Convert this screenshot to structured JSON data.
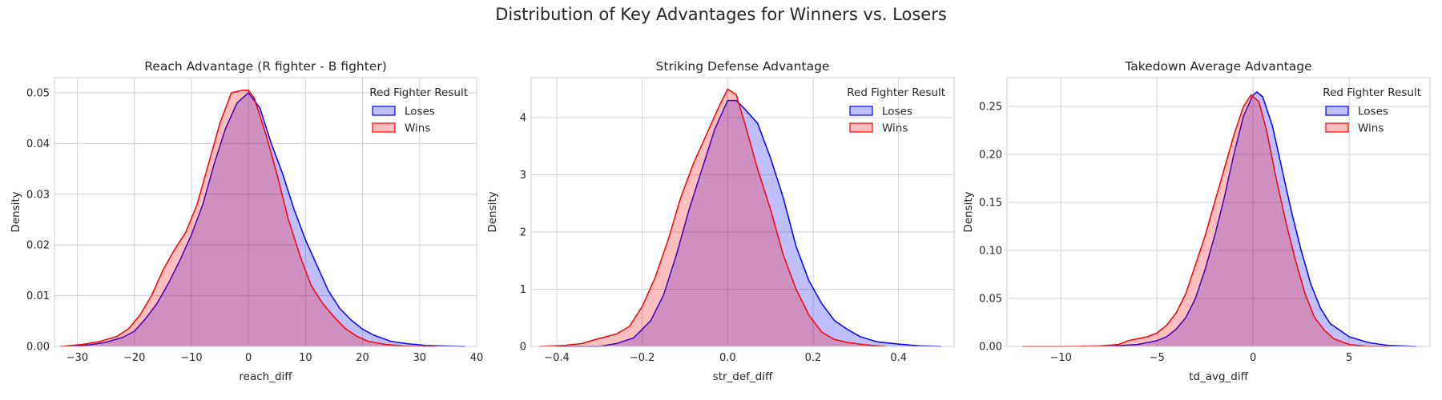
{
  "suptitle": "Distribution of Key Advantages for Winners vs. Losers",
  "colors": {
    "loses": "#0000ff",
    "wins": "#ff0000",
    "grid": "#d0d0d0",
    "frame": "#cccccc"
  },
  "chart_data": [
    {
      "type": "area",
      "title": "Reach Advantage (R fighter - B fighter)",
      "xlabel": "reach_diff",
      "ylabel": "Density",
      "xlim": [
        -34,
        40
      ],
      "ylim": [
        0,
        0.053
      ],
      "xticks": [
        -30,
        -20,
        -10,
        0,
        10,
        20,
        30,
        40
      ],
      "xtick_labels": [
        "−30",
        "−20",
        "−10",
        "0",
        "10",
        "20",
        "30",
        "40"
      ],
      "yticks": [
        0,
        0.01,
        0.02,
        0.03,
        0.04,
        0.05
      ],
      "ytick_labels": [
        "0.00",
        "0.01",
        "0.02",
        "0.03",
        "0.04",
        "0.05"
      ],
      "grid": true,
      "legend": {
        "title": "Red Fighter Result",
        "placement": "top-right"
      },
      "series": [
        {
          "name": "Loses",
          "color": "#0000ff",
          "x": [
            -32,
            -28,
            -25,
            -22,
            -20,
            -18,
            -16,
            -14,
            -12,
            -10,
            -8,
            -6,
            -4,
            -2,
            0,
            2,
            4,
            6,
            8,
            10,
            12,
            14,
            16,
            18,
            20,
            22,
            25,
            28,
            31,
            34,
            38
          ],
          "y": [
            0.0,
            0.0003,
            0.0008,
            0.0018,
            0.003,
            0.0055,
            0.0085,
            0.0125,
            0.017,
            0.022,
            0.028,
            0.036,
            0.043,
            0.048,
            0.05,
            0.047,
            0.04,
            0.034,
            0.027,
            0.021,
            0.016,
            0.011,
            0.0075,
            0.0052,
            0.0034,
            0.0022,
            0.001,
            0.0005,
            0.0002,
            0.0001,
            0.0
          ]
        },
        {
          "name": "Wins",
          "color": "#ff0000",
          "x": [
            -33,
            -29,
            -26,
            -23,
            -21,
            -19,
            -17,
            -15,
            -13,
            -11,
            -9,
            -7,
            -5,
            -3,
            -1,
            0,
            1,
            3,
            5,
            7,
            9,
            11,
            13,
            15,
            17,
            19,
            21,
            24,
            27,
            30,
            33
          ],
          "y": [
            0.0,
            0.0004,
            0.001,
            0.002,
            0.0035,
            0.0062,
            0.01,
            0.015,
            0.019,
            0.0225,
            0.028,
            0.036,
            0.044,
            0.05,
            0.0505,
            0.0505,
            0.049,
            0.042,
            0.034,
            0.025,
            0.018,
            0.012,
            0.0085,
            0.0058,
            0.0035,
            0.002,
            0.001,
            0.0004,
            0.0001,
            0.0,
            0.0
          ]
        }
      ]
    },
    {
      "type": "area",
      "title": "Striking Defense Advantage",
      "xlabel": "str_def_diff",
      "ylabel": "Density",
      "xlim": [
        -0.46,
        0.53
      ],
      "ylim": [
        0,
        4.7
      ],
      "xticks": [
        -0.4,
        -0.2,
        0,
        0.2,
        0.4
      ],
      "xtick_labels": [
        "−0.4",
        "−0.2",
        "0.0",
        "0.2",
        "0.4"
      ],
      "yticks": [
        0,
        1,
        2,
        3,
        4
      ],
      "ytick_labels": [
        "0",
        "1",
        "2",
        "3",
        "4"
      ],
      "grid": true,
      "legend": {
        "title": "Red Fighter Result",
        "placement": "top-right"
      },
      "series": [
        {
          "name": "Loses",
          "color": "#0000ff",
          "x": [
            -0.4,
            -0.34,
            -0.3,
            -0.26,
            -0.22,
            -0.18,
            -0.15,
            -0.12,
            -0.09,
            -0.06,
            -0.03,
            0.0,
            0.02,
            0.04,
            0.07,
            0.1,
            0.13,
            0.16,
            0.19,
            0.22,
            0.25,
            0.28,
            0.31,
            0.35,
            0.4,
            0.45,
            0.5
          ],
          "y": [
            0.0,
            0.0,
            0.0,
            0.05,
            0.15,
            0.45,
            0.9,
            1.6,
            2.4,
            3.1,
            3.8,
            4.3,
            4.3,
            4.15,
            3.9,
            3.3,
            2.6,
            1.75,
            1.15,
            0.75,
            0.45,
            0.3,
            0.17,
            0.08,
            0.04,
            0.01,
            0.0
          ]
        },
        {
          "name": "Wins",
          "color": "#ff0000",
          "x": [
            -0.44,
            -0.38,
            -0.34,
            -0.31,
            -0.29,
            -0.26,
            -0.23,
            -0.2,
            -0.17,
            -0.14,
            -0.11,
            -0.08,
            -0.05,
            -0.02,
            0.0,
            0.02,
            0.04,
            0.07,
            0.1,
            0.13,
            0.16,
            0.19,
            0.22,
            0.25,
            0.28,
            0.32,
            0.37
          ],
          "y": [
            0.0,
            0.02,
            0.05,
            0.12,
            0.16,
            0.22,
            0.35,
            0.7,
            1.2,
            1.85,
            2.6,
            3.2,
            3.7,
            4.2,
            4.5,
            4.4,
            3.9,
            3.1,
            2.4,
            1.6,
            1.0,
            0.55,
            0.25,
            0.12,
            0.07,
            0.03,
            0.0
          ]
        }
      ]
    },
    {
      "type": "area",
      "title": "Takedown Average Advantage",
      "xlabel": "td_avg_diff",
      "ylabel": "Density",
      "xlim": [
        -12.8,
        9.2
      ],
      "ylim": [
        0,
        0.28
      ],
      "xticks": [
        -10,
        -5,
        0,
        5
      ],
      "xtick_labels": [
        "−10",
        "−5",
        "0",
        "5"
      ],
      "yticks": [
        0,
        0.05,
        0.1,
        0.15,
        0.2,
        0.25
      ],
      "ytick_labels": [
        "0.00",
        "0.05",
        "0.10",
        "0.15",
        "0.20",
        "0.25"
      ],
      "grid": true,
      "legend": {
        "title": "Red Fighter Result",
        "placement": "top-right"
      },
      "series": [
        {
          "name": "Loses",
          "color": "#0000ff",
          "x": [
            -9,
            -7,
            -6,
            -5,
            -4.5,
            -4,
            -3.5,
            -3,
            -2.5,
            -2,
            -1.5,
            -1,
            -0.5,
            0,
            0.2,
            0.5,
            1,
            1.5,
            2,
            2.5,
            3,
            3.5,
            4,
            5,
            6,
            7,
            8.5
          ],
          "y": [
            0.0,
            0.0008,
            0.002,
            0.006,
            0.01,
            0.018,
            0.03,
            0.05,
            0.08,
            0.115,
            0.155,
            0.2,
            0.24,
            0.262,
            0.265,
            0.26,
            0.23,
            0.185,
            0.14,
            0.1,
            0.065,
            0.04,
            0.024,
            0.01,
            0.004,
            0.001,
            0.0
          ]
        },
        {
          "name": "Wins",
          "color": "#ff0000",
          "x": [
            -12,
            -10,
            -8,
            -7,
            -6.5,
            -6,
            -5.5,
            -5,
            -4.5,
            -4,
            -3.5,
            -3,
            -2.5,
            -2,
            -1.5,
            -1,
            -0.5,
            -0.1,
            0.3,
            0.7,
            1.2,
            1.7,
            2.2,
            2.7,
            3.2,
            3.7,
            4.2,
            5,
            6,
            7
          ],
          "y": [
            0.0,
            0.0,
            0.0005,
            0.002,
            0.006,
            0.008,
            0.01,
            0.014,
            0.022,
            0.035,
            0.055,
            0.085,
            0.115,
            0.15,
            0.185,
            0.22,
            0.25,
            0.262,
            0.255,
            0.225,
            0.175,
            0.13,
            0.09,
            0.055,
            0.03,
            0.017,
            0.008,
            0.002,
            0.0,
            0.0
          ]
        }
      ]
    }
  ]
}
